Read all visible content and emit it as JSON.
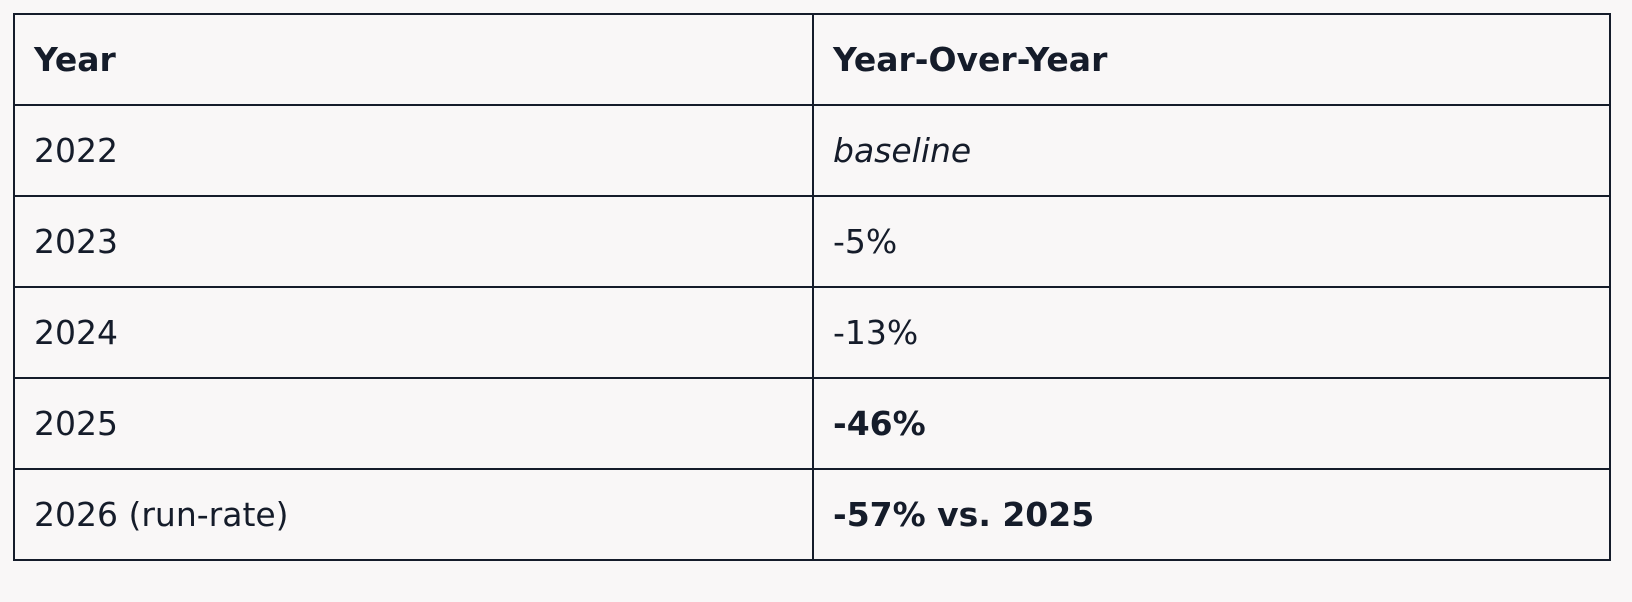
{
  "table": {
    "header": [
      "Year",
      "Year-Over-Year"
    ],
    "rows": [
      [
        "2022",
        "baseline"
      ],
      [
        "2023",
        "-5%"
      ],
      [
        "2024",
        "-13%"
      ],
      [
        "2025",
        "-46%"
      ],
      [
        "2026 (run-rate)",
        "-57% vs. 2025"
      ]
    ]
  }
}
